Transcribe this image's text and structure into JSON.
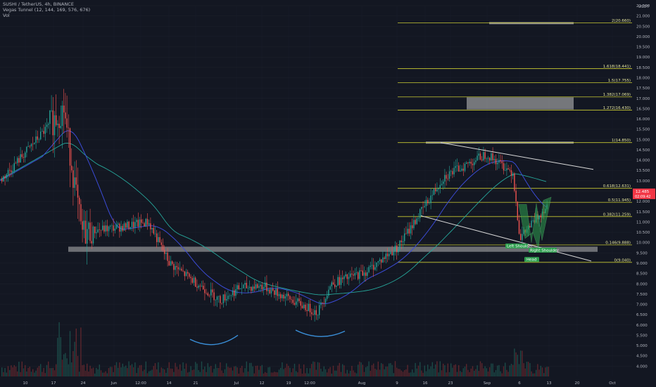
{
  "header": {
    "symbol_line": "SUSHI / TetherUS, 4h, BINANCE",
    "indicator_line": "Vegas Tunnel (12, 144, 169, 576, 676)",
    "vol_label": "Vol"
  },
  "currency": "USDT",
  "price_label": {
    "price": "12.485",
    "countdown": "02:09:42"
  },
  "chart_data": {
    "type": "line",
    "y_range": [
      3.5,
      21.5
    ],
    "y_ticks": [
      "21.500",
      "21.000",
      "20.500",
      "20.000",
      "19.500",
      "19.000",
      "18.500",
      "18.000",
      "17.500",
      "17.000",
      "16.500",
      "16.000",
      "15.500",
      "15.000",
      "14.500",
      "14.000",
      "13.500",
      "13.000",
      "12.500",
      "12.000",
      "11.500",
      "11.000",
      "10.500",
      "10.000",
      "9.500",
      "9.000",
      "8.500",
      "8.000",
      "7.500",
      "7.000",
      "6.500",
      "6.000",
      "5.500",
      "5.000",
      "4.500",
      "4.000"
    ],
    "x_ticks": [
      "10",
      "17",
      "24",
      "Jun",
      "12:00",
      "14",
      "21",
      "Jul",
      "12",
      "19",
      "12:00",
      "Aug",
      "9",
      "16",
      "23",
      "Sep",
      "6",
      "13",
      "20",
      "Oct"
    ],
    "fib_levels": [
      {
        "label": "2(20.660)",
        "value": 20.66
      },
      {
        "label": "1.618(18.441)",
        "value": 18.441
      },
      {
        "label": "1.5(17.755)",
        "value": 17.755
      },
      {
        "label": "1.382(17.069)",
        "value": 17.069
      },
      {
        "label": "1.272(16.430)",
        "value": 16.43
      },
      {
        "label": "1(14.850)",
        "value": 14.85
      },
      {
        "label": "0.618(12.631)",
        "value": 12.631
      },
      {
        "label": "0.5(11.945)",
        "value": 11.945
      },
      {
        "label": "0.382(11.259)",
        "value": 11.259
      },
      {
        "label": "0.146(9.888)",
        "value": 9.888
      },
      {
        "label": "0(9.040)",
        "value": 9.04
      }
    ],
    "price_series": {
      "x": [
        "10",
        "17",
        "24",
        "Jun",
        "12:00",
        "14",
        "21",
        "Jul",
        "12",
        "19",
        "12:00",
        "Aug",
        "9",
        "16",
        "23",
        "Sep",
        "6",
        "13"
      ],
      "values": [
        13.0,
        16.5,
        10.5,
        10.8,
        11.0,
        9.0,
        7.2,
        7.8,
        7.9,
        6.6,
        8.0,
        8.6,
        9.8,
        13.2,
        14.3,
        13.4,
        10.2,
        11.8
      ]
    },
    "support_zone": [
      9.55,
      9.8
    ],
    "annotations": [
      "Left Shoulder",
      "Right Shoulder",
      "Head"
    ]
  },
  "colors": {
    "background": "#131722",
    "up": "#26a69a",
    "down": "#ef5350",
    "fib": "#c8c832",
    "tunnel_green": "#2e9e4f",
    "tunnel_blue": "#3b4bd6",
    "tunnel_purple": "#9a48d0",
    "price_tag": "#f23645"
  }
}
